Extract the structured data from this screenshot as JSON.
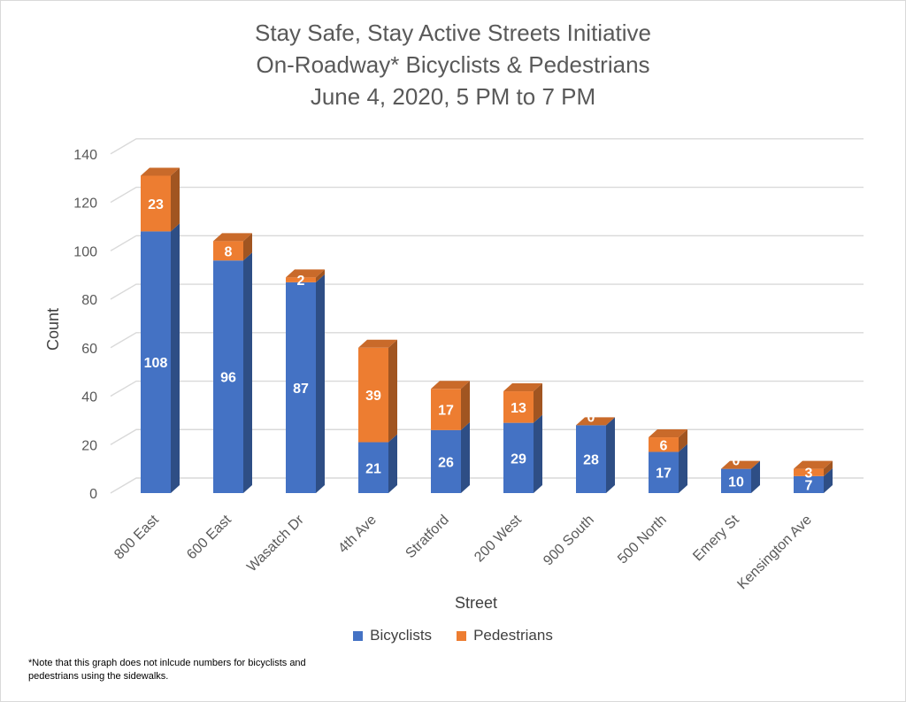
{
  "chart_data": {
    "type": "bar",
    "stacked": true,
    "title": [
      "Stay Safe, Stay Active Streets Initiative",
      "On-Roadway* Bicyclists & Pedestrians",
      "June 4, 2020, 5 PM to 7 PM"
    ],
    "xlabel": "Street",
    "ylabel": "Count",
    "ylim": [
      0,
      140
    ],
    "yticks": [
      0,
      20,
      40,
      60,
      80,
      100,
      120,
      140
    ],
    "categories": [
      "800 East",
      "600 East",
      "Wasatch Dr",
      "4th Ave",
      "Stratford",
      "200 West",
      "900 South",
      "500 North",
      "Emery St",
      "Kensington Ave"
    ],
    "series": [
      {
        "name": "Bicyclists",
        "color": "#4472c4",
        "values": [
          108,
          96,
          87,
          21,
          26,
          29,
          28,
          17,
          10,
          7
        ]
      },
      {
        "name": "Pedestrians",
        "color": "#ed7d31",
        "values": [
          23,
          8,
          2,
          39,
          17,
          13,
          0,
          6,
          0,
          3
        ]
      }
    ],
    "legend_position": "bottom",
    "grid": true
  },
  "footnote": "*Note that this graph does not inlcude numbers for bicyclists and pedestrians using the sidewalks."
}
